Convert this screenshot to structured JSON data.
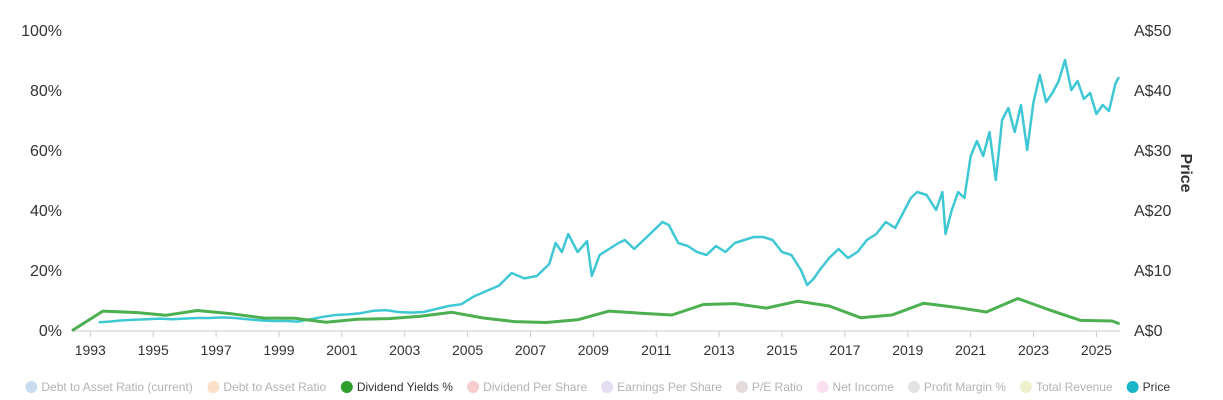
{
  "chart_data": {
    "type": "line",
    "title": "",
    "xlabel": "",
    "ylabel_left": "",
    "ylabel_right": "Price",
    "x_ticks": [
      "1993",
      "1995",
      "1997",
      "1999",
      "2001",
      "2003",
      "2005",
      "2007",
      "2009",
      "2011",
      "2013",
      "2015",
      "2017",
      "2019",
      "2021",
      "2023",
      "2025"
    ],
    "y_left_ticks": [
      "0%",
      "20%",
      "40%",
      "60%",
      "80%",
      "100%"
    ],
    "y_right_ticks": [
      "A$0",
      "A$10",
      "A$20",
      "A$30",
      "A$40",
      "A$50"
    ],
    "ylim_left": [
      0,
      100
    ],
    "ylim_right": [
      0,
      50
    ],
    "xlim": [
      1992.45,
      2025.75
    ],
    "grid": false,
    "legend_position": "bottom",
    "colors": {
      "dividend": "#4caf50",
      "price": "#3fc8d4",
      "dividend_marker": "#2e9e2e",
      "price_marker": "#1bb5c8"
    },
    "legend": [
      {
        "label": "Debt to Asset Ratio (current)",
        "color": "#c9dcef",
        "active": false
      },
      {
        "label": "Debt to Asset Ratio",
        "color": "#fde0c8",
        "active": false
      },
      {
        "label": "Dividend Yields %",
        "color": "#2e9e2e",
        "active": true
      },
      {
        "label": "Dividend Per Share",
        "color": "#f6cccc",
        "active": false
      },
      {
        "label": "Earnings Per Share",
        "color": "#e3dcf3",
        "active": false
      },
      {
        "label": "P/E Ratio",
        "color": "#e3dcdc",
        "active": false
      },
      {
        "label": "Net Income",
        "color": "#f9dff0",
        "active": false
      },
      {
        "label": "Profit Margin %",
        "color": "#e3e3e3",
        "active": false
      },
      {
        "label": "Total Revenue",
        "color": "#eef0cc",
        "active": false
      },
      {
        "label": "Price",
        "color": "#1bb5c8",
        "active": true
      }
    ],
    "series": [
      {
        "name": "Dividend Yields %",
        "axis": "left",
        "x": [
          1992.45,
          1993.4,
          1994.5,
          1995.4,
          1996.4,
          1997.5,
          1998.5,
          1999.5,
          2000.5,
          2001.5,
          2002.5,
          2003.5,
          2004.5,
          2005.5,
          2006.5,
          2007.5,
          2008.5,
          2009.5,
          2010.5,
          2011.5,
          2012.5,
          2013.5,
          2014.5,
          2015.5,
          2016.5,
          2017.5,
          2018.5,
          2019.5,
          2020.5,
          2021.5,
          2022.5,
          2023.5,
          2024.5,
          2025.5,
          2025.7
        ],
        "y": [
          0,
          6.3,
          5.8,
          4.9,
          6.5,
          5.4,
          4.0,
          3.9,
          2.6,
          3.6,
          3.8,
          4.6,
          5.9,
          4.0,
          2.8,
          2.5,
          3.4,
          6.3,
          5.6,
          5.0,
          8.5,
          8.8,
          7.3,
          9.6,
          8.0,
          4.1,
          5.0,
          8.9,
          7.6,
          6.0,
          10.5,
          6.7,
          3.2,
          3.0,
          2.2
        ]
      },
      {
        "name": "Price",
        "axis": "right",
        "x": [
          1993.3,
          1993.6,
          1994.0,
          1994.4,
          1994.8,
          1995.2,
          1995.6,
          1996.0,
          1996.4,
          1996.8,
          1997.2,
          1997.6,
          1998.0,
          1998.4,
          1998.8,
          1999.2,
          1999.6,
          2000.0,
          2000.4,
          2000.8,
          2001.2,
          2001.6,
          2002.0,
          2002.4,
          2002.8,
          2003.2,
          2003.6,
          2004.0,
          2004.4,
          2004.8,
          2005.2,
          2005.6,
          2006.0,
          2006.4,
          2006.8,
          2007.2,
          2007.6,
          2007.8,
          2008.0,
          2008.2,
          2008.5,
          2008.8,
          2008.95,
          2009.2,
          2009.5,
          2009.8,
          2010.0,
          2010.3,
          2010.6,
          2010.9,
          2011.2,
          2011.4,
          2011.7,
          2012.0,
          2012.3,
          2012.6,
          2012.9,
          2013.2,
          2013.5,
          2013.8,
          2014.1,
          2014.4,
          2014.7,
          2015.0,
          2015.3,
          2015.6,
          2015.8,
          2016.0,
          2016.2,
          2016.5,
          2016.8,
          2017.1,
          2017.4,
          2017.7,
          2018.0,
          2018.3,
          2018.6,
          2018.9,
          2019.1,
          2019.3,
          2019.6,
          2019.9,
          2020.1,
          2020.2,
          2020.4,
          2020.6,
          2020.8,
          2021.0,
          2021.2,
          2021.4,
          2021.6,
          2021.8,
          2022.0,
          2022.2,
          2022.4,
          2022.6,
          2022.8,
          2023.0,
          2023.2,
          2023.4,
          2023.6,
          2023.8,
          2024.0,
          2024.2,
          2024.4,
          2024.6,
          2024.8,
          2025.0,
          2025.2,
          2025.4,
          2025.6,
          2025.7
        ],
        "y": [
          1.3,
          1.4,
          1.6,
          1.7,
          1.8,
          1.9,
          1.8,
          1.9,
          2.0,
          2.0,
          2.1,
          2.0,
          1.8,
          1.6,
          1.5,
          1.5,
          1.4,
          1.8,
          2.2,
          2.5,
          2.6,
          2.8,
          3.2,
          3.3,
          3.0,
          2.9,
          3.0,
          3.5,
          4.0,
          4.3,
          5.6,
          6.5,
          7.4,
          9.5,
          8.6,
          9.0,
          11.0,
          14.5,
          13.0,
          16.0,
          13.0,
          14.8,
          9.0,
          12.5,
          13.5,
          14.5,
          15.0,
          13.5,
          15.0,
          16.5,
          18.0,
          17.5,
          14.5,
          14.0,
          13.0,
          12.5,
          14.0,
          13.0,
          14.5,
          15.0,
          15.5,
          15.5,
          15.0,
          13.0,
          12.5,
          10.0,
          7.5,
          8.5,
          10.0,
          12.0,
          13.5,
          12.0,
          13.0,
          15.0,
          16.0,
          18.0,
          17.0,
          20.0,
          22.0,
          23.0,
          22.5,
          20.0,
          23.0,
          16.0,
          20.0,
          23.0,
          22.0,
          29.0,
          31.5,
          29.0,
          33.0,
          25.0,
          35.0,
          37.0,
          33.0,
          37.5,
          30.0,
          38.0,
          42.5,
          38.0,
          39.5,
          41.5,
          45.0,
          40.0,
          41.5,
          38.5,
          39.5,
          36.0,
          37.5,
          36.5,
          41.0,
          42.0
        ]
      }
    ]
  }
}
